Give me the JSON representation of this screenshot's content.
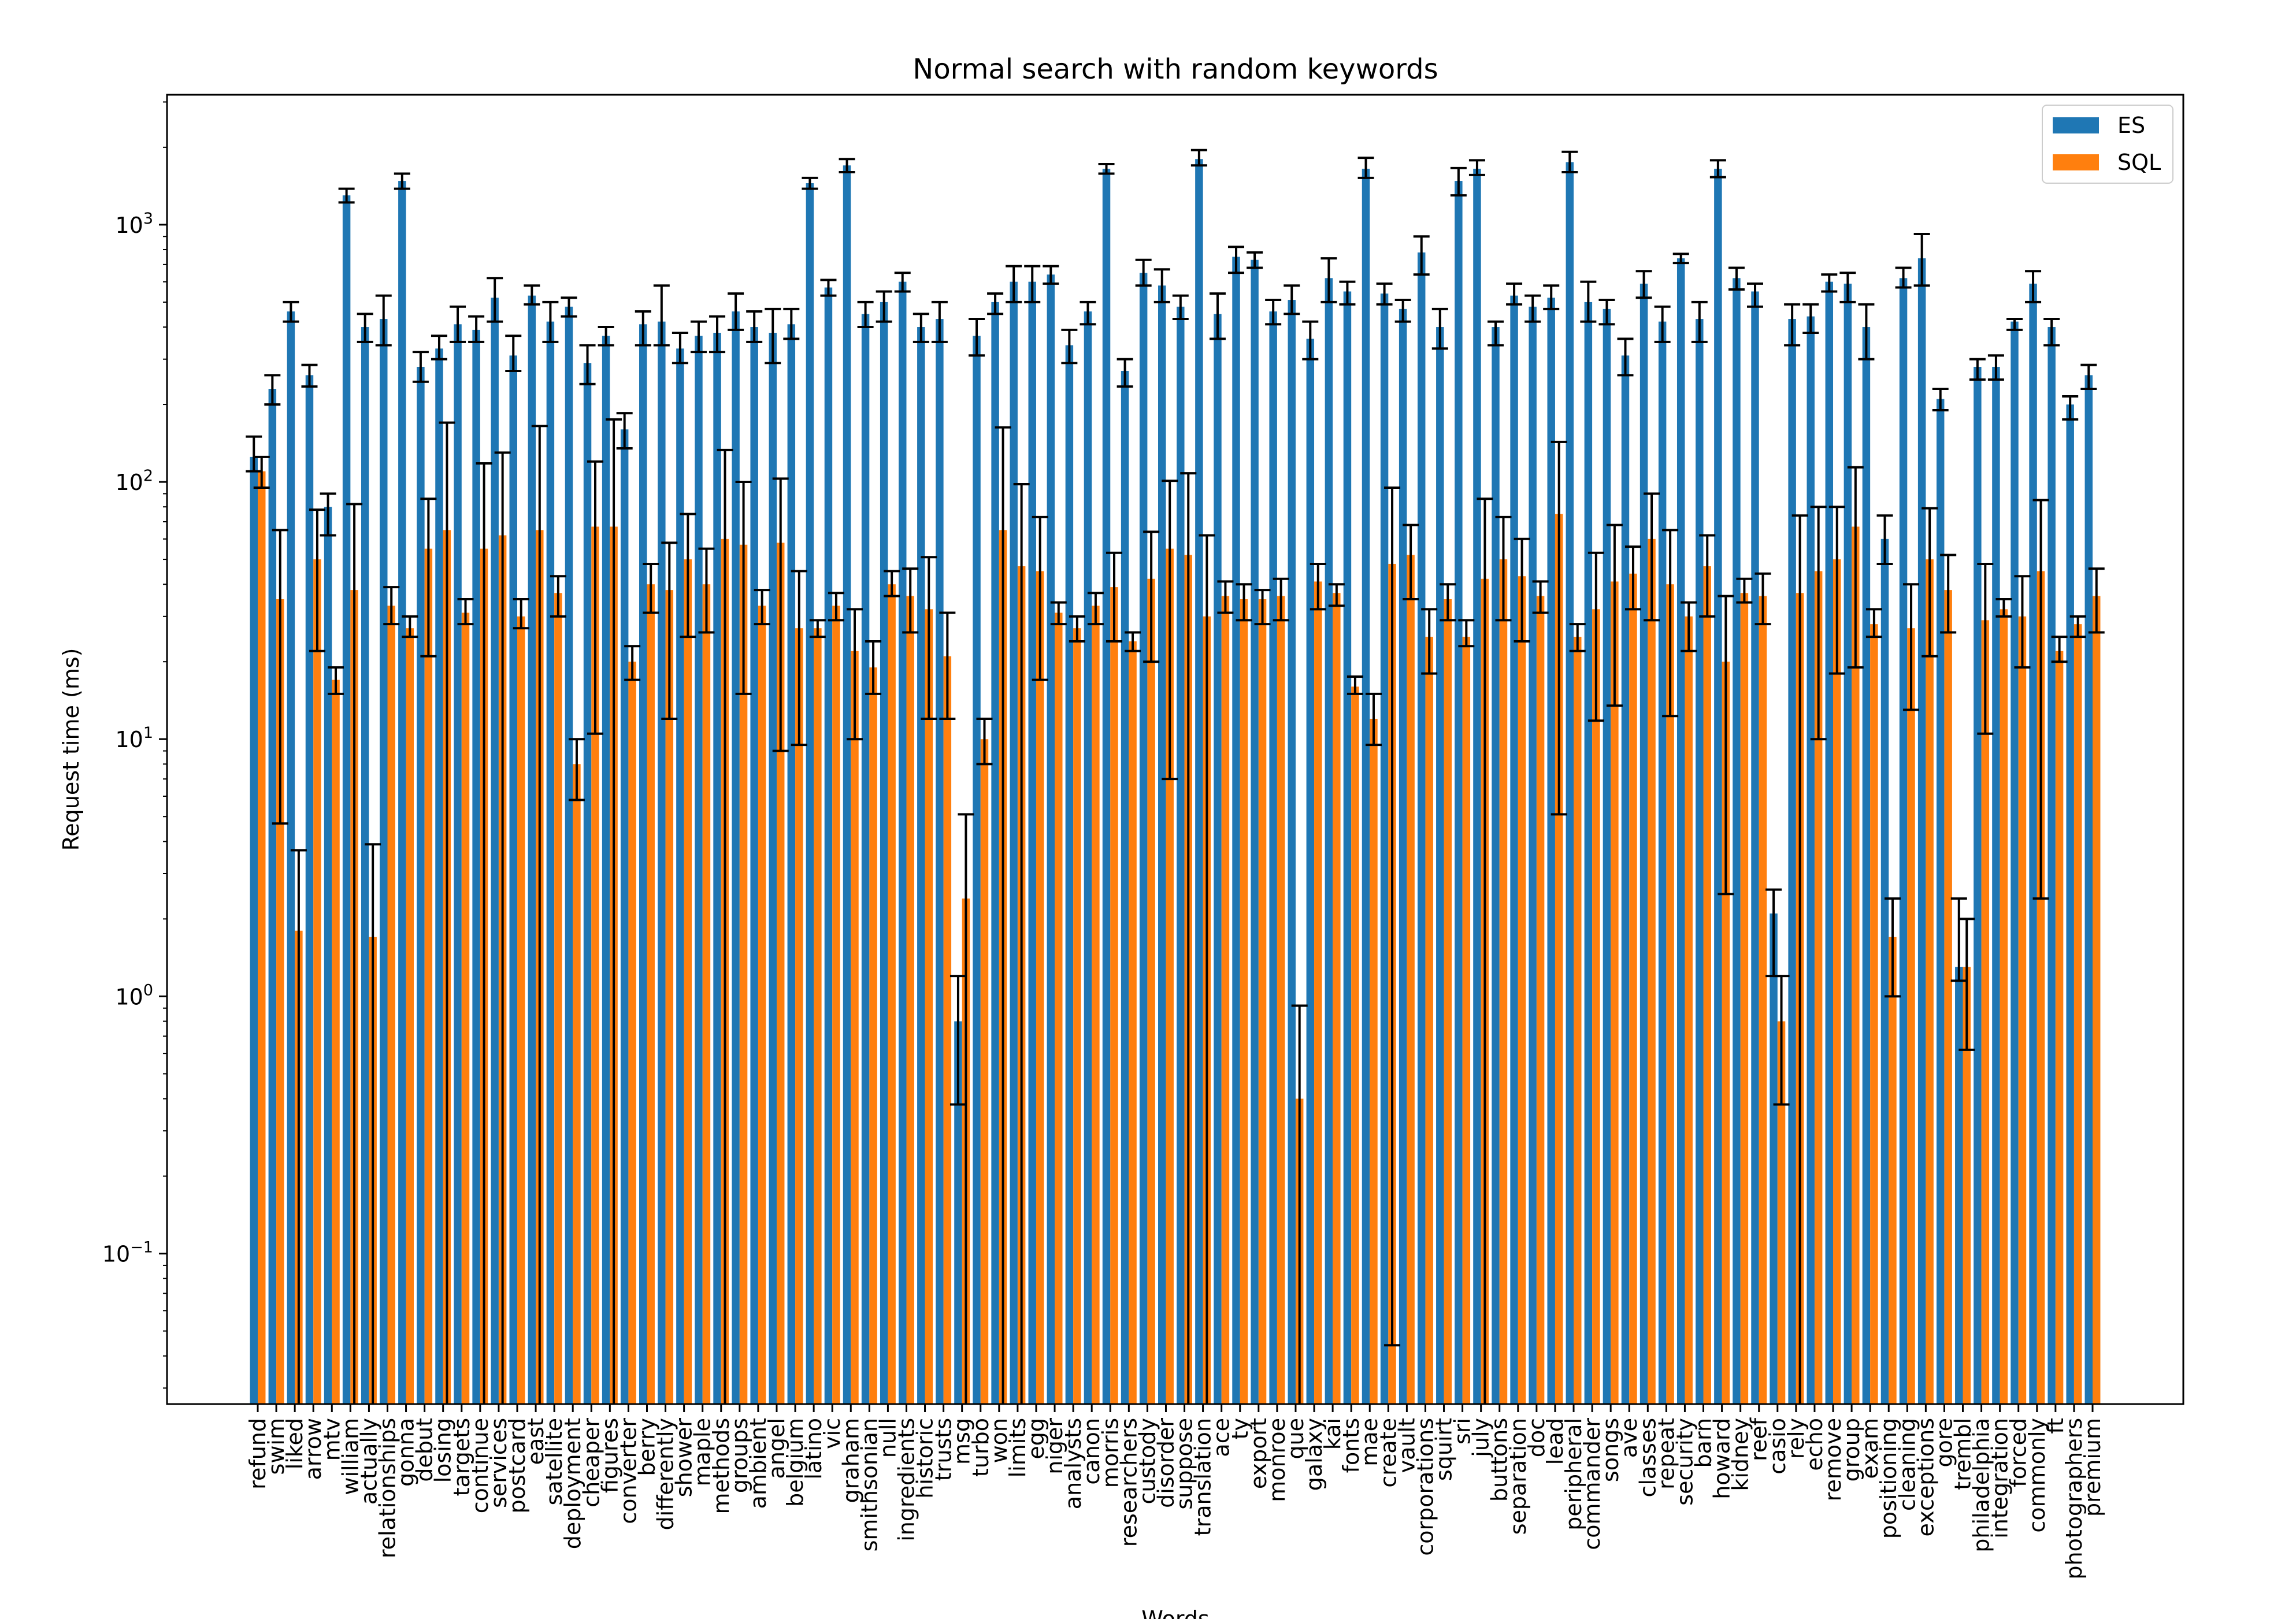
{
  "chart_data": {
    "type": "bar",
    "title": "Normal search with random keywords",
    "xlabel": "Words",
    "ylabel": "Request time (ms)",
    "yscale": "log",
    "ylim": [
      0.026,
      3200
    ],
    "yticks": [
      {
        "value": 0.1,
        "base": "10",
        "exp": "−1"
      },
      {
        "value": 1,
        "base": "10",
        "exp": "0"
      },
      {
        "value": 10,
        "base": "10",
        "exp": "1"
      },
      {
        "value": 100,
        "base": "10",
        "exp": "2"
      },
      {
        "value": 1000,
        "base": "10",
        "exp": "3"
      }
    ],
    "legend_position": "upper right",
    "categories": [
      "refund",
      "swim",
      "liked",
      "arrow",
      "mtv",
      "william",
      "actually",
      "relationships",
      "gonna",
      "debut",
      "losing",
      "targets",
      "continue",
      "services",
      "postcard",
      "east",
      "satellite",
      "deployment",
      "cheaper",
      "figures",
      "converter",
      "berry",
      "differently",
      "shower",
      "maple",
      "methods",
      "groups",
      "ambient",
      "angel",
      "belgium",
      "latino",
      "vic",
      "graham",
      "smithsonian",
      "null",
      "ingredients",
      "historic",
      "trusts",
      "msg",
      "turbo",
      "won",
      "limits",
      "egg",
      "niger",
      "analysts",
      "canon",
      "morris",
      "researchers",
      "custody",
      "disorder",
      "suppose",
      "translation",
      "ace",
      "ty",
      "export",
      "monroe",
      "que",
      "galaxy",
      "kai",
      "fonts",
      "mae",
      "create",
      "vault",
      "corporations",
      "squirt",
      "sri",
      "july",
      "buttons",
      "separation",
      "doc",
      "lead",
      "peripheral",
      "commander",
      "songs",
      "ave",
      "classes",
      "repeat",
      "security",
      "barn",
      "howard",
      "kidney",
      "reef",
      "casio",
      "rely",
      "echo",
      "remove",
      "group",
      "exam",
      "positioning",
      "cleaning",
      "exceptions",
      "gore",
      "trembl",
      "philadelphia",
      "integration",
      "forced",
      "commonly",
      "ft",
      "photographers",
      "premium"
    ],
    "series": [
      {
        "name": "ES",
        "color": "#1f77b4",
        "values": [
          125,
          230,
          460,
          260,
          80,
          1300,
          400,
          430,
          1480,
          280,
          330,
          410,
          390,
          520,
          310,
          530,
          420,
          480,
          290,
          370,
          160,
          410,
          420,
          330,
          370,
          380,
          460,
          400,
          380,
          410,
          1450,
          570,
          1700,
          450,
          500,
          600,
          400,
          430,
          0.8,
          370,
          500,
          600,
          600,
          640,
          340,
          460,
          1650,
          270,
          650,
          580,
          480,
          1800,
          450,
          750,
          730,
          460,
          510,
          360,
          620,
          550,
          1650,
          540,
          470,
          780,
          400,
          1480,
          1650,
          400,
          530,
          480,
          520,
          1750,
          500,
          470,
          310,
          590,
          420,
          740,
          430,
          1650,
          620,
          550,
          2.1,
          430,
          440,
          600,
          590,
          400,
          60,
          620,
          740,
          210,
          1.3,
          280,
          280,
          420,
          590,
          400,
          200,
          260
        ],
        "errors": [
          [
            110,
            150
          ],
          [
            200,
            260
          ],
          [
            420,
            500
          ],
          [
            235,
            285
          ],
          [
            62,
            90
          ],
          [
            1220,
            1380
          ],
          [
            350,
            450
          ],
          [
            340,
            530
          ],
          [
            1380,
            1580
          ],
          [
            245,
            320
          ],
          [
            300,
            370
          ],
          [
            350,
            480
          ],
          [
            350,
            440
          ],
          [
            420,
            620
          ],
          [
            270,
            370
          ],
          [
            490,
            580
          ],
          [
            350,
            500
          ],
          [
            440,
            520
          ],
          [
            240,
            340
          ],
          [
            340,
            400
          ],
          [
            135,
            185
          ],
          [
            340,
            460
          ],
          [
            340,
            580
          ],
          [
            290,
            380
          ],
          [
            320,
            420
          ],
          [
            320,
            440
          ],
          [
            390,
            540
          ],
          [
            350,
            460
          ],
          [
            290,
            470
          ],
          [
            360,
            470
          ],
          [
            1380,
            1520
          ],
          [
            530,
            610
          ],
          [
            1600,
            1800
          ],
          [
            400,
            500
          ],
          [
            420,
            550
          ],
          [
            550,
            650
          ],
          [
            350,
            450
          ],
          [
            350,
            500
          ],
          [
            0.38,
            1.2
          ],
          [
            310,
            430
          ],
          [
            450,
            540
          ],
          [
            500,
            690
          ],
          [
            500,
            690
          ],
          [
            590,
            690
          ],
          [
            290,
            390
          ],
          [
            410,
            500
          ],
          [
            1580,
            1720
          ],
          [
            235,
            300
          ],
          [
            580,
            730
          ],
          [
            500,
            670
          ],
          [
            430,
            530
          ],
          [
            1700,
            1950
          ],
          [
            360,
            540
          ],
          [
            650,
            820
          ],
          [
            680,
            780
          ],
          [
            410,
            510
          ],
          [
            450,
            580
          ],
          [
            300,
            420
          ],
          [
            500,
            740
          ],
          [
            490,
            600
          ],
          [
            1520,
            1820
          ],
          [
            490,
            590
          ],
          [
            420,
            510
          ],
          [
            640,
            900
          ],
          [
            330,
            470
          ],
          [
            1300,
            1660
          ],
          [
            1560,
            1780
          ],
          [
            340,
            420
          ],
          [
            490,
            590
          ],
          [
            420,
            530
          ],
          [
            470,
            580
          ],
          [
            1600,
            1920
          ],
          [
            420,
            600
          ],
          [
            410,
            510
          ],
          [
            260,
            360
          ],
          [
            520,
            660
          ],
          [
            350,
            480
          ],
          [
            710,
            770
          ],
          [
            350,
            500
          ],
          [
            1530,
            1780
          ],
          [
            560,
            680
          ],
          [
            480,
            590
          ],
          [
            1.2,
            2.6
          ],
          [
            340,
            490
          ],
          [
            380,
            490
          ],
          [
            550,
            640
          ],
          [
            500,
            650
          ],
          [
            300,
            490
          ],
          [
            48,
            74
          ],
          [
            570,
            680
          ],
          [
            580,
            920
          ],
          [
            190,
            230
          ],
          [
            1.15,
            2.4
          ],
          [
            250,
            300
          ],
          [
            250,
            310
          ],
          [
            390,
            430
          ],
          [
            500,
            660
          ],
          [
            340,
            430
          ],
          [
            175,
            215
          ],
          [
            230,
            285
          ]
        ]
      },
      {
        "name": "SQL",
        "color": "#ff7f0e",
        "values": [
          110,
          35,
          1.8,
          50,
          17,
          38,
          1.7,
          33,
          27,
          55,
          65,
          31,
          55,
          62,
          30,
          65,
          37,
          8,
          67,
          67,
          20,
          40,
          38,
          50,
          40,
          60,
          57,
          33,
          58,
          27,
          27,
          33,
          22,
          19,
          40,
          36,
          32,
          21,
          2.4,
          10,
          65,
          47,
          45,
          31,
          27,
          33,
          39,
          24,
          42,
          55,
          52,
          30,
          36,
          35,
          35,
          36,
          0.4,
          41,
          37,
          16,
          12,
          48,
          52,
          25,
          35,
          25,
          42,
          50,
          43,
          36,
          75,
          25,
          32,
          41,
          44,
          60,
          40,
          30,
          47,
          20,
          37,
          36,
          0.8,
          37,
          45,
          50,
          67,
          28,
          1.7,
          27,
          50,
          38,
          1.3,
          29,
          32,
          30,
          45,
          22,
          28,
          36
        ],
        "errors": [
          [
            95,
            125
          ],
          [
            4.7,
            65
          ],
          [
            0.026,
            3.7
          ],
          [
            22,
            78
          ],
          [
            15,
            19
          ],
          [
            0.026,
            82
          ],
          [
            0.026,
            3.9
          ],
          [
            28,
            39
          ],
          [
            25,
            30
          ],
          [
            21,
            86
          ],
          [
            0.026,
            170
          ],
          [
            28,
            35
          ],
          [
            0.026,
            118
          ],
          [
            0.026,
            130
          ],
          [
            27,
            35
          ],
          [
            0.026,
            165
          ],
          [
            30,
            43
          ],
          [
            5.8,
            10
          ],
          [
            10.5,
            120
          ],
          [
            0.026,
            175
          ],
          [
            17,
            23
          ],
          [
            31,
            48
          ],
          [
            12,
            58
          ],
          [
            25,
            75
          ],
          [
            26,
            55
          ],
          [
            0.026,
            133
          ],
          [
            15,
            100
          ],
          [
            28,
            38
          ],
          [
            9,
            103
          ],
          [
            9.5,
            45
          ],
          [
            25,
            29
          ],
          [
            29,
            37
          ],
          [
            10,
            32
          ],
          [
            15,
            24
          ],
          [
            36,
            45
          ],
          [
            26,
            46
          ],
          [
            12,
            51
          ],
          [
            12,
            31
          ],
          [
            0.026,
            5.1
          ],
          [
            8,
            12
          ],
          [
            0.026,
            163
          ],
          [
            0.026,
            98
          ],
          [
            17,
            73
          ],
          [
            28,
            34
          ],
          [
            24,
            30
          ],
          [
            28,
            37
          ],
          [
            24,
            53
          ],
          [
            22,
            26
          ],
          [
            20,
            64
          ],
          [
            7,
            101
          ],
          [
            0.026,
            108
          ],
          [
            0.026,
            62
          ],
          [
            31,
            41
          ],
          [
            29,
            40
          ],
          [
            28,
            38
          ],
          [
            29,
            42
          ],
          [
            0.026,
            0.92
          ],
          [
            32,
            48
          ],
          [
            33,
            40
          ],
          [
            15,
            17.5
          ],
          [
            9.5,
            15
          ],
          [
            0.044,
            95
          ],
          [
            35,
            68
          ],
          [
            18,
            32
          ],
          [
            29,
            40
          ],
          [
            23,
            29
          ],
          [
            0.026,
            86
          ],
          [
            29,
            73
          ],
          [
            24,
            60
          ],
          [
            31,
            41
          ],
          [
            5.1,
            143
          ],
          [
            22,
            28
          ],
          [
            11.8,
            53
          ],
          [
            13.5,
            68
          ],
          [
            32,
            56
          ],
          [
            29,
            90
          ],
          [
            12.3,
            65
          ],
          [
            22,
            34
          ],
          [
            30,
            62
          ],
          [
            2.5,
            36
          ],
          [
            34,
            42
          ],
          [
            28,
            44
          ],
          [
            0.38,
            1.2
          ],
          [
            0.026,
            74
          ],
          [
            10,
            80
          ],
          [
            18,
            80
          ],
          [
            19,
            114
          ],
          [
            25,
            32
          ],
          [
            1.0,
            2.4
          ],
          [
            13,
            40
          ],
          [
            21,
            79
          ],
          [
            26,
            52
          ],
          [
            0.62,
            2.0
          ],
          [
            10.5,
            48
          ],
          [
            30,
            35
          ],
          [
            19,
            43
          ],
          [
            2.4,
            85
          ],
          [
            20,
            25
          ],
          [
            25,
            30
          ],
          [
            26,
            46
          ]
        ]
      }
    ]
  }
}
